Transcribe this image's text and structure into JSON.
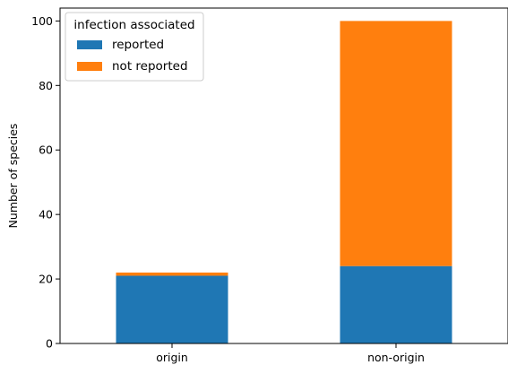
{
  "chart_data": {
    "type": "bar",
    "stacked": true,
    "categories": [
      "origin",
      "non-origin"
    ],
    "series": [
      {
        "name": "reported",
        "values": [
          21,
          24
        ],
        "color": "#1f77b4"
      },
      {
        "name": "not reported",
        "values": [
          1,
          76
        ],
        "color": "#ff7f0e"
      }
    ],
    "ylabel": "Number of species",
    "xlabel": "",
    "ylim": [
      0,
      104
    ],
    "yticks": [
      0,
      20,
      40,
      60,
      80,
      100
    ],
    "legend": {
      "title": "infection associated",
      "placement": "top-left"
    },
    "grid": false
  }
}
